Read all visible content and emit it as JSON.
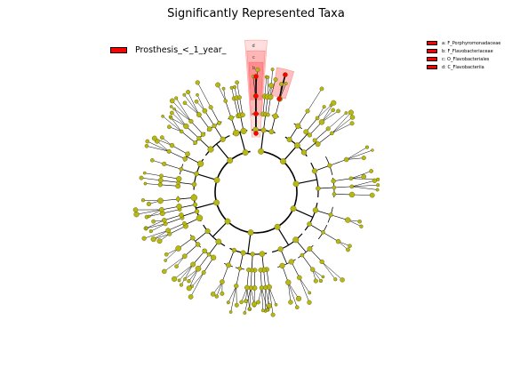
{
  "title": "Significantly Represented Taxa",
  "class_legend": {
    "label": "Prosthesis_<_1_year_",
    "color": "#ff0000"
  },
  "taxa_legend": [
    {
      "letter": "a",
      "text": "a: F_Porphyromonadaceae"
    },
    {
      "letter": "b",
      "text": "b: F_Flavobacteriaceae"
    },
    {
      "letter": "c",
      "text": "c: O_Flavobacteriales"
    },
    {
      "letter": "d",
      "text": "d: C_Flavobacteriia"
    }
  ],
  "colors": {
    "highlight": "#ff0000",
    "node": "#b8b814",
    "node_stroke": "#555500",
    "edge": "#000000"
  }
}
